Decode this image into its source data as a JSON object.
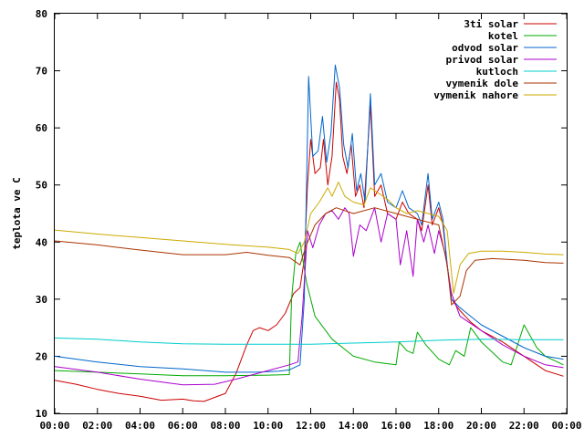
{
  "chart_data": {
    "type": "line",
    "title": "",
    "xlabel": "",
    "ylabel": "teplota ve C",
    "xlim": [
      0,
      24
    ],
    "ylim": [
      10,
      80
    ],
    "x_ticks": [
      "00:00",
      "02:00",
      "04:00",
      "06:00",
      "08:00",
      "10:00",
      "12:00",
      "14:00",
      "16:00",
      "18:00",
      "20:00",
      "22:00",
      "00:00"
    ],
    "y_ticks": [
      10,
      20,
      30,
      40,
      50,
      60,
      70,
      80
    ],
    "grid": false,
    "legend_position": "top-right",
    "series": [
      {
        "name": "3ti solar",
        "color": "#cc0000",
        "points": [
          [
            0,
            15.8
          ],
          [
            1,
            15.1
          ],
          [
            2,
            14.2
          ],
          [
            3,
            13.5
          ],
          [
            4,
            13
          ],
          [
            5,
            12.3
          ],
          [
            6,
            12.5
          ],
          [
            6.5,
            12.2
          ],
          [
            7,
            12.1
          ],
          [
            7.5,
            12.8
          ],
          [
            8,
            13.5
          ],
          [
            8.5,
            17
          ],
          [
            9,
            22
          ],
          [
            9.3,
            24.5
          ],
          [
            9.6,
            25
          ],
          [
            10,
            24.5
          ],
          [
            10.4,
            25.5
          ],
          [
            10.8,
            27.5
          ],
          [
            11.2,
            31
          ],
          [
            11.5,
            32
          ],
          [
            11.7,
            37
          ],
          [
            11.85,
            50
          ],
          [
            12,
            58
          ],
          [
            12.2,
            52
          ],
          [
            12.45,
            53
          ],
          [
            12.6,
            58
          ],
          [
            12.8,
            50
          ],
          [
            13,
            55
          ],
          [
            13.2,
            68
          ],
          [
            13.35,
            65
          ],
          [
            13.5,
            55
          ],
          [
            13.7,
            52
          ],
          [
            13.9,
            57
          ],
          [
            14.1,
            48
          ],
          [
            14.3,
            50
          ],
          [
            14.5,
            46
          ],
          [
            14.8,
            64
          ],
          [
            15,
            48
          ],
          [
            15.3,
            50
          ],
          [
            15.6,
            45
          ],
          [
            16,
            44
          ],
          [
            16.3,
            47
          ],
          [
            16.6,
            45
          ],
          [
            17,
            44
          ],
          [
            17.2,
            42
          ],
          [
            17.5,
            50
          ],
          [
            17.7,
            43
          ],
          [
            18,
            46
          ],
          [
            18.2,
            43
          ],
          [
            18.4,
            36
          ],
          [
            18.6,
            30
          ],
          [
            19,
            28
          ],
          [
            19.5,
            26
          ],
          [
            20,
            24.5
          ],
          [
            21,
            22.5
          ],
          [
            22,
            20
          ],
          [
            23,
            17.5
          ],
          [
            23.85,
            16.5
          ]
        ]
      },
      {
        "name": "kotel",
        "color": "#00aa00",
        "points": [
          [
            0,
            17.5
          ],
          [
            2,
            17.2
          ],
          [
            4,
            16.9
          ],
          [
            6,
            16.6
          ],
          [
            8,
            16.6
          ],
          [
            10,
            16.7
          ],
          [
            11,
            16.8
          ],
          [
            11.1,
            30
          ],
          [
            11.3,
            38
          ],
          [
            11.5,
            40
          ],
          [
            11.8,
            33
          ],
          [
            12.2,
            27
          ],
          [
            12.6,
            25
          ],
          [
            13,
            23
          ],
          [
            14,
            20
          ],
          [
            15,
            19
          ],
          [
            16,
            18.5
          ],
          [
            16.15,
            22.5
          ],
          [
            16.5,
            21
          ],
          [
            16.8,
            20.5
          ],
          [
            17,
            24.2
          ],
          [
            17.4,
            22
          ],
          [
            18,
            19.5
          ],
          [
            18.5,
            18.5
          ],
          [
            18.8,
            21
          ],
          [
            19.2,
            20
          ],
          [
            19.5,
            25
          ],
          [
            20,
            22.5
          ],
          [
            21,
            19
          ],
          [
            21.4,
            18.5
          ],
          [
            22,
            25.5
          ],
          [
            22.6,
            21.5
          ],
          [
            23,
            20
          ],
          [
            23.85,
            18.5
          ]
        ]
      },
      {
        "name": "odvod solar",
        "color": "#0066cc",
        "points": [
          [
            0,
            20
          ],
          [
            2,
            19
          ],
          [
            4,
            18.2
          ],
          [
            6,
            17.8
          ],
          [
            8,
            17.2
          ],
          [
            9.5,
            17.2
          ],
          [
            10.5,
            17.4
          ],
          [
            11,
            17.6
          ],
          [
            11.5,
            18.5
          ],
          [
            11.7,
            30
          ],
          [
            11.9,
            69
          ],
          [
            12.1,
            55
          ],
          [
            12.35,
            56
          ],
          [
            12.55,
            62
          ],
          [
            12.75,
            54
          ],
          [
            12.95,
            59
          ],
          [
            13.15,
            71
          ],
          [
            13.35,
            67
          ],
          [
            13.55,
            57
          ],
          [
            13.75,
            53
          ],
          [
            13.95,
            59
          ],
          [
            14.15,
            49
          ],
          [
            14.35,
            52
          ],
          [
            14.55,
            47
          ],
          [
            14.8,
            66
          ],
          [
            15,
            50
          ],
          [
            15.3,
            52
          ],
          [
            15.6,
            47
          ],
          [
            16,
            46
          ],
          [
            16.3,
            49
          ],
          [
            16.6,
            46
          ],
          [
            17,
            45
          ],
          [
            17.2,
            43
          ],
          [
            17.5,
            52
          ],
          [
            17.7,
            44
          ],
          [
            18,
            47
          ],
          [
            18.2,
            44
          ],
          [
            18.4,
            36
          ],
          [
            18.6,
            30
          ],
          [
            19,
            28.5
          ],
          [
            19.5,
            27
          ],
          [
            20,
            25.5
          ],
          [
            21,
            23.5
          ],
          [
            22,
            21.5
          ],
          [
            23,
            20
          ],
          [
            23.85,
            19.5
          ]
        ]
      },
      {
        "name": "privod solar",
        "color": "#aa00cc",
        "points": [
          [
            0,
            18.2
          ],
          [
            2,
            17.2
          ],
          [
            4,
            16
          ],
          [
            6,
            15
          ],
          [
            7.5,
            15.1
          ],
          [
            8.5,
            16
          ],
          [
            10,
            17.5
          ],
          [
            11,
            18.5
          ],
          [
            11.4,
            19
          ],
          [
            11.6,
            27
          ],
          [
            11.85,
            42
          ],
          [
            12.1,
            39
          ],
          [
            12.4,
            43
          ],
          [
            12.7,
            45
          ],
          [
            13,
            45.5
          ],
          [
            13.3,
            44
          ],
          [
            13.6,
            46
          ],
          [
            13.8,
            45
          ],
          [
            14,
            37.5
          ],
          [
            14.3,
            43
          ],
          [
            14.6,
            42
          ],
          [
            15,
            46
          ],
          [
            15.3,
            40
          ],
          [
            15.6,
            45
          ],
          [
            16,
            44
          ],
          [
            16.2,
            36
          ],
          [
            16.5,
            42
          ],
          [
            16.8,
            34
          ],
          [
            17,
            44
          ],
          [
            17.3,
            40
          ],
          [
            17.5,
            43
          ],
          [
            17.8,
            38
          ],
          [
            18,
            42
          ],
          [
            18.3,
            38
          ],
          [
            18.6,
            31
          ],
          [
            19,
            27
          ],
          [
            20,
            24.5
          ],
          [
            21,
            22
          ],
          [
            22,
            20
          ],
          [
            23,
            18.5
          ],
          [
            23.85,
            18
          ]
        ]
      },
      {
        "name": "kutloch",
        "color": "#00cccc",
        "points": [
          [
            0,
            23.2
          ],
          [
            2,
            23
          ],
          [
            4,
            22.5
          ],
          [
            6,
            22.2
          ],
          [
            8,
            22.1
          ],
          [
            10,
            22.1
          ],
          [
            12,
            22.1
          ],
          [
            14,
            22.3
          ],
          [
            16,
            22.5
          ],
          [
            18,
            22.8
          ],
          [
            20,
            23
          ],
          [
            22,
            22.9
          ],
          [
            23.85,
            22.9
          ]
        ]
      },
      {
        "name": "vymenik dole",
        "color": "#aa3300",
        "points": [
          [
            0,
            40.2
          ],
          [
            2,
            39.5
          ],
          [
            4,
            38.6
          ],
          [
            6,
            37.8
          ],
          [
            8,
            37.8
          ],
          [
            9,
            38.2
          ],
          [
            10,
            37.7
          ],
          [
            11,
            37.3
          ],
          [
            11.5,
            36
          ],
          [
            11.8,
            39.5
          ],
          [
            12.2,
            43
          ],
          [
            12.7,
            45
          ],
          [
            13.2,
            46
          ],
          [
            14,
            45
          ],
          [
            15,
            46
          ],
          [
            16,
            45
          ],
          [
            17,
            44
          ],
          [
            18,
            43
          ],
          [
            18.4,
            36
          ],
          [
            18.6,
            29
          ],
          [
            19,
            30.5
          ],
          [
            19.3,
            35
          ],
          [
            19.7,
            36.8
          ],
          [
            20.5,
            37.1
          ],
          [
            22,
            36.8
          ],
          [
            23,
            36.4
          ],
          [
            23.85,
            36.3
          ]
        ]
      },
      {
        "name": "vymenik nahore",
        "color": "#ccaa00",
        "points": [
          [
            0,
            42.1
          ],
          [
            2,
            41.4
          ],
          [
            4,
            40.8
          ],
          [
            6,
            40.2
          ],
          [
            8,
            39.6
          ],
          [
            10,
            39.1
          ],
          [
            11,
            38.7
          ],
          [
            11.4,
            38
          ],
          [
            11.7,
            40
          ],
          [
            12,
            45
          ],
          [
            12.4,
            47
          ],
          [
            12.8,
            49.5
          ],
          [
            13,
            48
          ],
          [
            13.3,
            50.5
          ],
          [
            13.6,
            48
          ],
          [
            14,
            47
          ],
          [
            14.5,
            46.5
          ],
          [
            14.8,
            49.5
          ],
          [
            15.2,
            48.5
          ],
          [
            15.6,
            47.5
          ],
          [
            16,
            46
          ],
          [
            16.5,
            45
          ],
          [
            17,
            45.5
          ],
          [
            17.5,
            45
          ],
          [
            18,
            44.5
          ],
          [
            18.4,
            42
          ],
          [
            18.7,
            31
          ],
          [
            19,
            36
          ],
          [
            19.4,
            38
          ],
          [
            20,
            38.4
          ],
          [
            21,
            38.4
          ],
          [
            22,
            38.2
          ],
          [
            23,
            37.9
          ],
          [
            23.85,
            37.8
          ]
        ]
      }
    ]
  }
}
